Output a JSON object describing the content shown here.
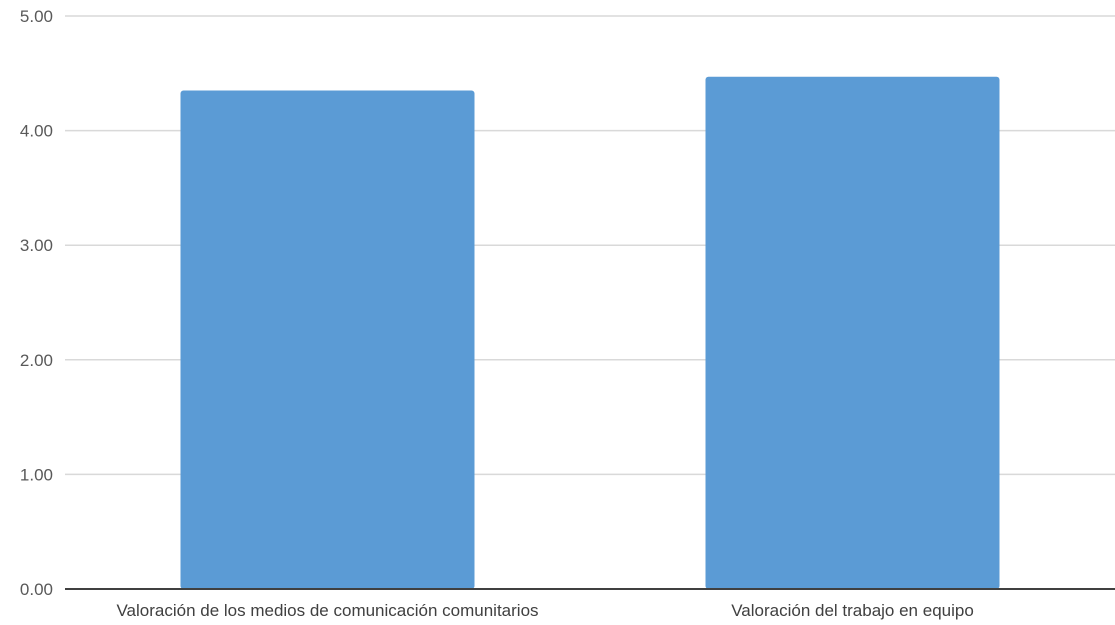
{
  "chart_data": {
    "type": "bar",
    "categories": [
      "Valoración de los medios de comunicación comunitarios",
      "Valoración del trabajo en equipo"
    ],
    "values": [
      4.35,
      4.47
    ],
    "ylim": [
      0,
      5
    ],
    "yticks": [
      "0.00",
      "1.00",
      "2.00",
      "3.00",
      "4.00",
      "5.00"
    ],
    "title": "",
    "xlabel": "",
    "ylabel": "",
    "grid": true,
    "legend": "none",
    "bar_color": "#5b9bd5"
  }
}
